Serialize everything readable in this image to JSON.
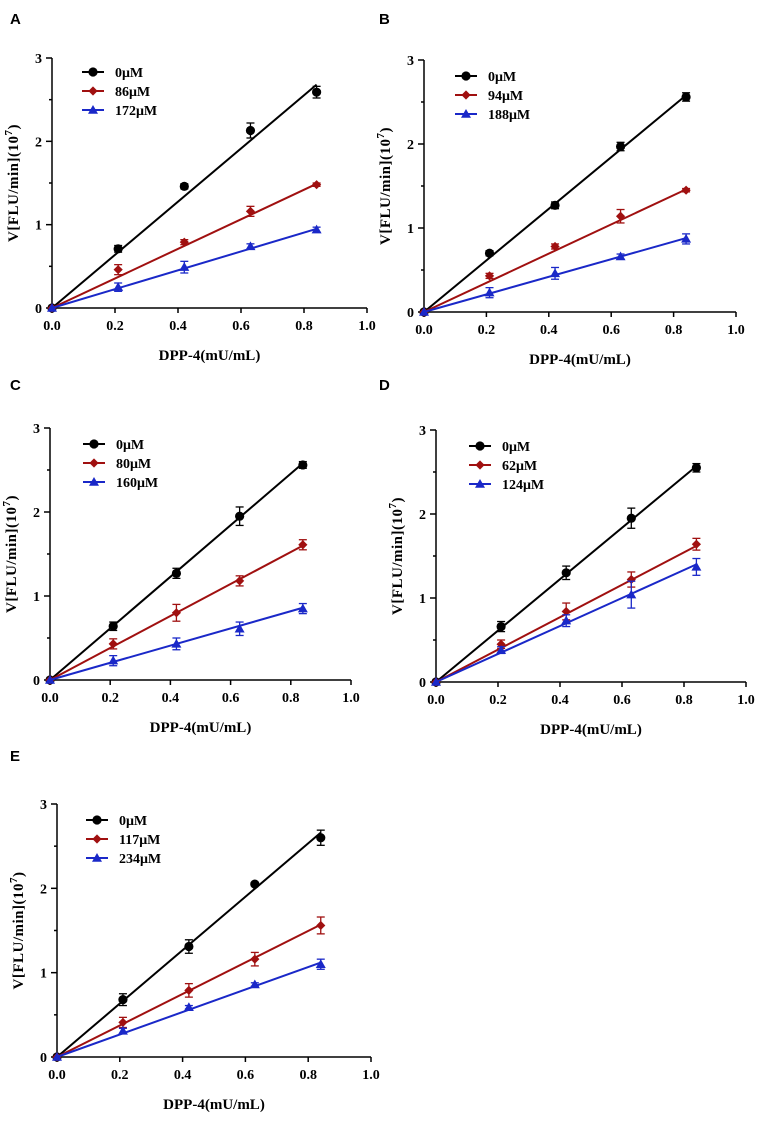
{
  "colors": {
    "black": "#000000",
    "red": "#a01010",
    "blue": "#1a28c8"
  },
  "chart_data": [
    {
      "panel": "A",
      "type": "line",
      "xlabel": "DPP-4(mU/mL)",
      "ylabel_main": "V[FLU/min](10",
      "ylabel_exp": "7",
      "ylabel_close": ")",
      "xlim": [
        0,
        1.0
      ],
      "ylim": [
        0,
        3
      ],
      "xticks": [
        "0.0",
        "0.2",
        "0.4",
        "0.6",
        "0.8",
        "1.0"
      ],
      "yticks": [
        "0",
        "1",
        "2",
        "3"
      ],
      "series": [
        {
          "name": "0μM",
          "marker": "circle",
          "color": "#000000",
          "x": [
            0,
            0.21,
            0.42,
            0.63,
            0.84
          ],
          "y": [
            0,
            0.71,
            1.46,
            2.13,
            2.59
          ],
          "err": [
            0,
            0.04,
            0.03,
            0.09,
            0.07
          ],
          "fit_end": 2.68
        },
        {
          "name": "86μM",
          "marker": "diamond",
          "color": "#a01010",
          "x": [
            0,
            0.21,
            0.42,
            0.63,
            0.84
          ],
          "y": [
            0,
            0.46,
            0.79,
            1.16,
            1.48
          ],
          "err": [
            0,
            0.06,
            0.03,
            0.06,
            0.02
          ],
          "fit_end": 1.49
        },
        {
          "name": "172μM",
          "marker": "triangle",
          "color": "#1a28c8",
          "x": [
            0,
            0.21,
            0.42,
            0.63,
            0.84
          ],
          "y": [
            0,
            0.25,
            0.49,
            0.74,
            0.94
          ],
          "err": [
            0,
            0.05,
            0.07,
            0.03,
            0.03
          ],
          "fit_end": 0.95
        }
      ]
    },
    {
      "panel": "B",
      "type": "line",
      "xlabel": "DPP-4(mU/mL)",
      "ylabel_main": "V[FLU/min](10",
      "ylabel_exp": "7",
      "ylabel_close": ")",
      "xlim": [
        0,
        1.0
      ],
      "ylim": [
        0,
        3
      ],
      "xticks": [
        "0.0",
        "0.2",
        "0.4",
        "0.6",
        "0.8",
        "1.0"
      ],
      "yticks": [
        "0",
        "1",
        "2",
        "3"
      ],
      "series": [
        {
          "name": "0μM",
          "marker": "circle",
          "color": "#000000",
          "x": [
            0,
            0.21,
            0.42,
            0.63,
            0.84
          ],
          "y": [
            0,
            0.7,
            1.27,
            1.97,
            2.56
          ],
          "err": [
            0,
            0.03,
            0.04,
            0.05,
            0.05
          ],
          "fit_end": 2.58
        },
        {
          "name": "94μM",
          "marker": "diamond",
          "color": "#a01010",
          "x": [
            0,
            0.21,
            0.42,
            0.63,
            0.84
          ],
          "y": [
            0,
            0.43,
            0.78,
            1.14,
            1.45
          ],
          "err": [
            0,
            0.03,
            0.03,
            0.08,
            0.02
          ],
          "fit_end": 1.46
        },
        {
          "name": "188μM",
          "marker": "triangle",
          "color": "#1a28c8",
          "x": [
            0,
            0.21,
            0.42,
            0.63,
            0.84
          ],
          "y": [
            0,
            0.23,
            0.46,
            0.66,
            0.87
          ],
          "err": [
            0,
            0.06,
            0.07,
            0.03,
            0.06
          ],
          "fit_end": 0.88
        }
      ]
    },
    {
      "panel": "C",
      "type": "line",
      "xlabel": "DPP-4(mU/mL)",
      "ylabel_main": "V[FLU/min](10",
      "ylabel_exp": "7",
      "ylabel_close": ")",
      "xlim": [
        0,
        1.0
      ],
      "ylim": [
        0,
        3
      ],
      "xticks": [
        "0.0",
        "0.2",
        "0.4",
        "0.6",
        "0.8",
        "1.0"
      ],
      "yticks": [
        "0",
        "1",
        "2",
        "3"
      ],
      "series": [
        {
          "name": "0μM",
          "marker": "circle",
          "color": "#000000",
          "x": [
            0,
            0.21,
            0.42,
            0.63,
            0.84
          ],
          "y": [
            0,
            0.64,
            1.27,
            1.95,
            2.56
          ],
          "err": [
            0,
            0.05,
            0.06,
            0.11,
            0.04
          ],
          "fit_end": 2.58
        },
        {
          "name": "80μM",
          "marker": "diamond",
          "color": "#a01010",
          "x": [
            0,
            0.21,
            0.42,
            0.63,
            0.84
          ],
          "y": [
            0,
            0.43,
            0.8,
            1.18,
            1.61
          ],
          "err": [
            0,
            0.06,
            0.1,
            0.06,
            0.06
          ],
          "fit_end": 1.6
        },
        {
          "name": "160μM",
          "marker": "triangle",
          "color": "#1a28c8",
          "x": [
            0,
            0.21,
            0.42,
            0.63,
            0.84
          ],
          "y": [
            0,
            0.23,
            0.43,
            0.61,
            0.85
          ],
          "err": [
            0,
            0.06,
            0.07,
            0.08,
            0.06
          ],
          "fit_end": 0.86
        }
      ]
    },
    {
      "panel": "D",
      "type": "line",
      "xlabel": "DPP-4(mU/mL)",
      "ylabel_main": "V[FLU/min](10",
      "ylabel_exp": "7",
      "ylabel_close": ")",
      "xlim": [
        0,
        1.0
      ],
      "ylim": [
        0,
        3
      ],
      "xticks": [
        "0.0",
        "0.2",
        "0.4",
        "0.6",
        "0.8",
        "1.0"
      ],
      "yticks": [
        "0",
        "1",
        "2",
        "3"
      ],
      "series": [
        {
          "name": "0μM",
          "marker": "circle",
          "color": "#000000",
          "x": [
            0,
            0.21,
            0.42,
            0.63,
            0.84
          ],
          "y": [
            0,
            0.66,
            1.3,
            1.95,
            2.55
          ],
          "err": [
            0,
            0.06,
            0.08,
            0.12,
            0.05
          ],
          "fit_end": 2.57
        },
        {
          "name": "62μM",
          "marker": "diamond",
          "color": "#a01010",
          "x": [
            0,
            0.21,
            0.42,
            0.63,
            0.84
          ],
          "y": [
            0,
            0.45,
            0.84,
            1.22,
            1.64
          ],
          "err": [
            0,
            0.05,
            0.1,
            0.09,
            0.07
          ],
          "fit_end": 1.62
        },
        {
          "name": "124μM",
          "marker": "triangle",
          "color": "#1a28c8",
          "x": [
            0,
            0.21,
            0.42,
            0.63,
            0.84
          ],
          "y": [
            0,
            0.38,
            0.73,
            1.04,
            1.37
          ],
          "err": [
            0,
            0.04,
            0.07,
            0.16,
            0.1
          ],
          "fit_end": 1.4
        }
      ]
    },
    {
      "panel": "E",
      "type": "line",
      "xlabel": "DPP-4(mU/mL)",
      "ylabel_main": "V[FLU/min](10",
      "ylabel_exp": "7",
      "ylabel_close": ")",
      "xlim": [
        0,
        1.0
      ],
      "ylim": [
        0,
        3
      ],
      "xticks": [
        "0.0",
        "0.2",
        "0.4",
        "0.6",
        "0.8",
        "1.0"
      ],
      "yticks": [
        "0",
        "1",
        "2",
        "3"
      ],
      "series": [
        {
          "name": "0μM",
          "marker": "circle",
          "color": "#000000",
          "x": [
            0,
            0.21,
            0.42,
            0.63,
            0.84
          ],
          "y": [
            0,
            0.68,
            1.31,
            2.05,
            2.6
          ],
          "err": [
            0,
            0.07,
            0.08,
            0.02,
            0.09
          ],
          "fit_end": 2.66
        },
        {
          "name": "117μM",
          "marker": "diamond",
          "color": "#a01010",
          "x": [
            0,
            0.21,
            0.42,
            0.63,
            0.84
          ],
          "y": [
            0,
            0.41,
            0.79,
            1.16,
            1.56
          ],
          "err": [
            0,
            0.06,
            0.08,
            0.08,
            0.1
          ],
          "fit_end": 1.57
        },
        {
          "name": "234μM",
          "marker": "triangle",
          "color": "#1a28c8",
          "x": [
            0,
            0.21,
            0.42,
            0.63,
            0.84
          ],
          "y": [
            0,
            0.31,
            0.59,
            0.86,
            1.1
          ],
          "err": [
            0,
            0.03,
            0.02,
            0.02,
            0.06
          ],
          "fit_end": 1.12
        }
      ]
    }
  ]
}
